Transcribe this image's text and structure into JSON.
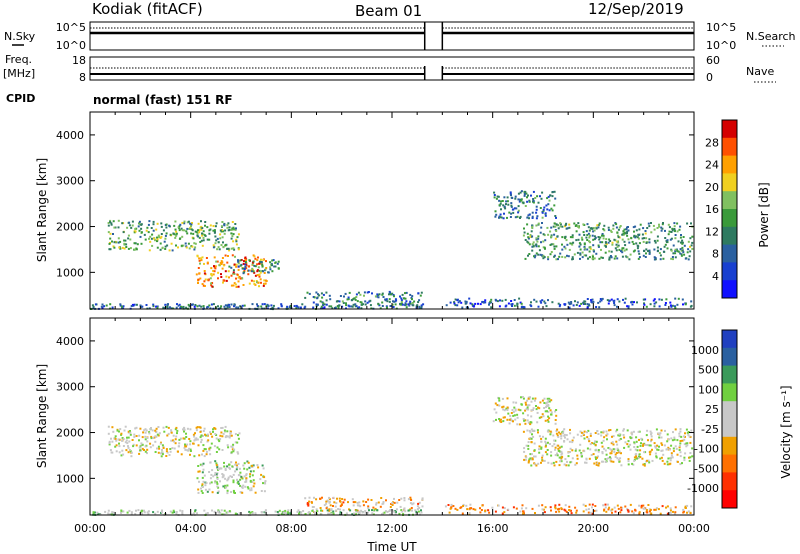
{
  "header": {
    "station": "Kodiak (fitACF)",
    "beam": "Beam 01",
    "date": "12/Sep/2019"
  },
  "left_labels": {
    "nsky": "N.Sky",
    "freq": "Freq.",
    "mhz": "[MHz]",
    "cpid": "CPID"
  },
  "right_labels": {
    "nsearch": "N.Search",
    "nave": "Nave"
  },
  "mode_text": "normal (fast) 151 RF",
  "chart_data": [
    {
      "type": "line",
      "panel": "noise",
      "left_axis_ticks": [
        "10^5",
        "10^0"
      ],
      "right_axis_ticks": [
        "10^5",
        "10^0"
      ],
      "data_gap_hours": [
        13.3,
        14.0
      ]
    },
    {
      "type": "line",
      "panel": "frequency",
      "left_axis_ticks": [
        "18",
        "8"
      ],
      "right_axis_ticks": [
        "60",
        "0"
      ],
      "data_gap_hours": [
        13.3,
        14.0
      ]
    },
    {
      "type": "heatmap",
      "panel": "power",
      "xlabel": "",
      "ylabel": "Slant Range [km]",
      "xlim": [
        0,
        24
      ],
      "ylim": [
        200,
        4500
      ],
      "y_ticks": [
        1000,
        2000,
        3000,
        4000
      ],
      "colorbar_label": "Power [dB]",
      "colorbar_ticks": [
        "28",
        "24",
        "20",
        "16",
        "12",
        "8",
        "4"
      ],
      "colorbar_colors": [
        "#d40000",
        "#ff5000",
        "#ffa000",
        "#f0d020",
        "#80c060",
        "#3a9a3a",
        "#2e7a60",
        "#2a60a0",
        "#1840d0",
        "#1010ff"
      ],
      "echo_regions": [
        {
          "t0": 0.7,
          "t1": 5.9,
          "r0": 1500,
          "r1": 2150,
          "level": 0.45
        },
        {
          "t0": 4.2,
          "t1": 7.0,
          "r0": 700,
          "r1": 1400,
          "level": 0.8
        },
        {
          "t0": 5.5,
          "t1": 7.5,
          "r0": 1000,
          "r1": 1300,
          "level": 0.35
        },
        {
          "t0": 8.5,
          "t1": 13.2,
          "r0": 300,
          "r1": 600,
          "level": 0.3
        },
        {
          "t0": 14.1,
          "t1": 23.9,
          "r0": 250,
          "r1": 450,
          "level": 0.2
        },
        {
          "t0": 16.0,
          "t1": 18.5,
          "r0": 2200,
          "r1": 2800,
          "level": 0.3
        },
        {
          "t0": 17.2,
          "t1": 23.9,
          "r0": 1300,
          "r1": 2100,
          "level": 0.4
        },
        {
          "t0": 0.0,
          "t1": 13.2,
          "r0": 220,
          "r1": 330,
          "level": 0.25
        }
      ]
    },
    {
      "type": "heatmap",
      "panel": "velocity",
      "xlabel": "Time UT",
      "ylabel": "Slant Range [km]",
      "xlim": [
        0,
        24
      ],
      "ylim": [
        200,
        4500
      ],
      "x_tick_labels": [
        "00:00",
        "04:00",
        "08:00",
        "12:00",
        "16:00",
        "20:00",
        "00:00"
      ],
      "y_ticks": [
        1000,
        2000,
        3000,
        4000
      ],
      "colorbar_label": "Velocity [m s⁻¹]",
      "colorbar_ticks": [
        "1000",
        "500",
        "100",
        "25",
        "-25",
        "-100",
        "-500",
        "-1000"
      ],
      "colorbar_colors": [
        "#2040c0",
        "#2a60a0",
        "#3a9a5a",
        "#70d040",
        "#c8c8c8",
        "#c8c8c8",
        "#f0a000",
        "#ff7000",
        "#ff3000",
        "#ff0000"
      ],
      "echo_regions": [
        {
          "t0": 0.7,
          "t1": 5.9,
          "r0": 1500,
          "r1": 2150,
          "level": 0.5
        },
        {
          "t0": 4.2,
          "t1": 7.0,
          "r0": 700,
          "r1": 1400,
          "level": 0.55
        },
        {
          "t0": 8.5,
          "t1": 13.2,
          "r0": 300,
          "r1": 600,
          "level": 0.35
        },
        {
          "t0": 14.1,
          "t1": 23.9,
          "r0": 250,
          "r1": 450,
          "level": 0.3
        },
        {
          "t0": 16.0,
          "t1": 18.5,
          "r0": 2200,
          "r1": 2800,
          "level": 0.5
        },
        {
          "t0": 17.2,
          "t1": 23.9,
          "r0": 1300,
          "r1": 2100,
          "level": 0.5
        },
        {
          "t0": 0.0,
          "t1": 13.2,
          "r0": 220,
          "r1": 330,
          "level": 0.6
        }
      ]
    }
  ]
}
